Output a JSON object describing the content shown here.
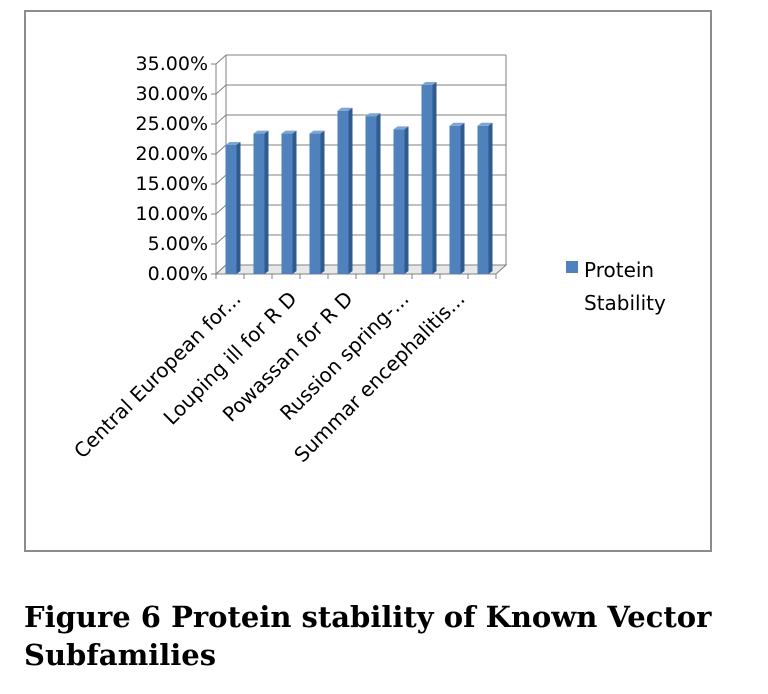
{
  "chart_data": {
    "type": "bar",
    "style": "3d-column",
    "categories": [
      "Central European for...",
      "",
      "Louping ill for R D",
      "",
      "Powassan  for R D",
      "",
      "Russion  spring-...",
      "",
      "Summar encephalitis...",
      ""
    ],
    "series": [
      {
        "name": "Protein Stability",
        "color": "#4f81bd",
        "values": [
          21.5,
          23.4,
          23.4,
          23.4,
          27.2,
          26.3,
          24.1,
          31.5,
          24.7,
          24.7
        ]
      }
    ],
    "y_tick_labels": [
      "0.00%",
      "5.00%",
      "10.00%",
      "15.00%",
      "20.00%",
      "25.00%",
      "30.00%",
      "35.00%"
    ],
    "ylim": [
      0,
      35
    ],
    "grid": true,
    "legend_position": "right"
  },
  "legend": {
    "line1": "Protein",
    "line2": "Stability"
  },
  "caption": {
    "line1": "Figure 6 Protein stability of Known Vector",
    "line2": "Subfamilies"
  }
}
